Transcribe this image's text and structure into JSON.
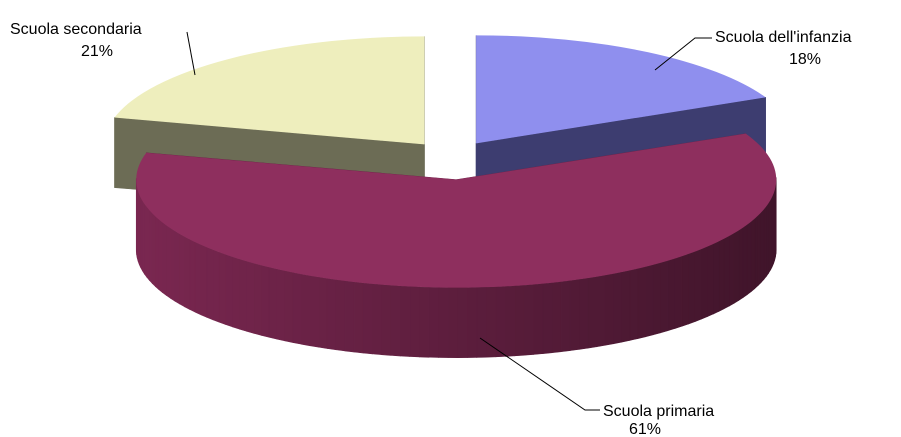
{
  "chart_data": {
    "type": "pie",
    "categories": [
      "Scuola dell'infanzia",
      "Scuola primaria",
      "Scuola secondaria"
    ],
    "values": [
      18,
      61,
      21
    ],
    "value_labels": [
      "18%",
      "61%",
      "21%"
    ],
    "colors": [
      "#8f8fee",
      "#8e2f5e",
      "#eeeebd"
    ],
    "side_colors": [
      "#3d3d70",
      "#6a2246",
      "#6c6c55"
    ]
  }
}
